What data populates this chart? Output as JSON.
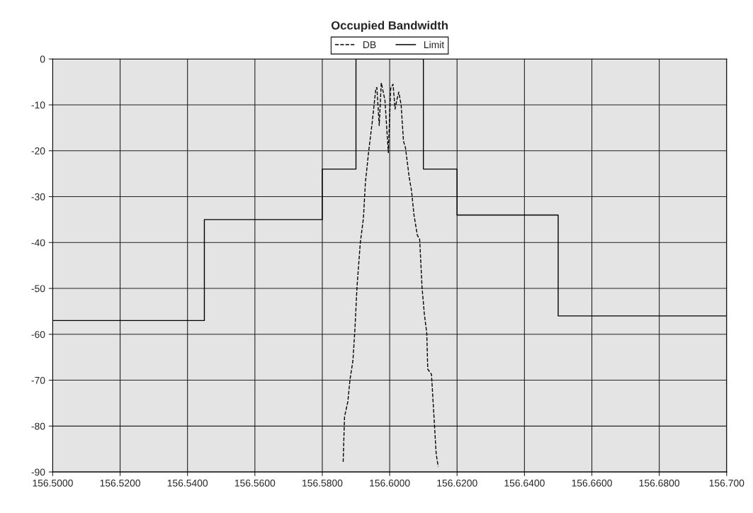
{
  "chart_data": {
    "type": "line",
    "title": "Occupied Bandwidth",
    "xlim": [
      156.5,
      156.7
    ],
    "xticks": [
      {
        "value": 156.5,
        "label": "156.5000"
      },
      {
        "value": 156.52,
        "label": "156.5200"
      },
      {
        "value": 156.54,
        "label": "156.5400"
      },
      {
        "value": 156.56,
        "label": "156.5600"
      },
      {
        "value": 156.58,
        "label": "156.5800"
      },
      {
        "value": 156.6,
        "label": "156.6000"
      },
      {
        "value": 156.62,
        "label": "156.6200"
      },
      {
        "value": 156.64,
        "label": "156.6400"
      },
      {
        "value": 156.66,
        "label": "156.6600"
      },
      {
        "value": 156.68,
        "label": "156.6800"
      },
      {
        "value": 156.7,
        "label": "156.700"
      }
    ],
    "ylim": [
      -90,
      0
    ],
    "yticks": [
      0,
      -10,
      -20,
      -30,
      -40,
      -50,
      -60,
      -70,
      -80,
      -90
    ],
    "grid": true,
    "legend": "top",
    "series": [
      {
        "name": "DB",
        "color": "#000000",
        "line_style": "dashed",
        "x": [
          156.5862,
          156.5866,
          156.5876,
          156.5882,
          156.5891,
          156.5897,
          156.5903,
          156.5913,
          156.5922,
          156.5928,
          156.5938,
          156.5948,
          156.5959,
          156.5962,
          156.5969,
          156.5975,
          156.5986,
          156.5996,
          156.6003,
          156.601,
          156.6016,
          156.6021,
          156.6027,
          156.6034,
          156.6041,
          156.6047,
          156.6058,
          156.6065,
          156.6072,
          156.6082,
          156.6089,
          156.6096,
          156.6103,
          156.611,
          156.6113,
          156.6124,
          156.613,
          156.6138,
          156.6144
        ],
        "values": [
          -87.8,
          -78,
          -74.6,
          -70,
          -65.7,
          -58.7,
          -49.7,
          -39.9,
          -34.8,
          -26.9,
          -19.9,
          -13.9,
          -6.4,
          -6.2,
          -14.5,
          -5.2,
          -9,
          -20.4,
          -6.4,
          -5.5,
          -10.9,
          -9,
          -7.2,
          -10,
          -17.9,
          -19.4,
          -25.8,
          -28.8,
          -33.9,
          -38.4,
          -39.3,
          -49.7,
          -55.7,
          -59.7,
          -67.6,
          -68.7,
          -76.1,
          -86.1,
          -88.8
        ]
      },
      {
        "name": "Limit",
        "color": "#000000",
        "line_style": "solid",
        "x": [
          156.5,
          156.545,
          156.545,
          156.58,
          156.58,
          156.59,
          156.59,
          156.61,
          156.61,
          156.62,
          156.62,
          156.65,
          156.65,
          156.7
        ],
        "values": [
          -57,
          -57,
          -35,
          -35,
          -24,
          -24,
          0,
          0,
          -24,
          -24,
          -34,
          -34,
          -56,
          -56
        ]
      }
    ]
  }
}
